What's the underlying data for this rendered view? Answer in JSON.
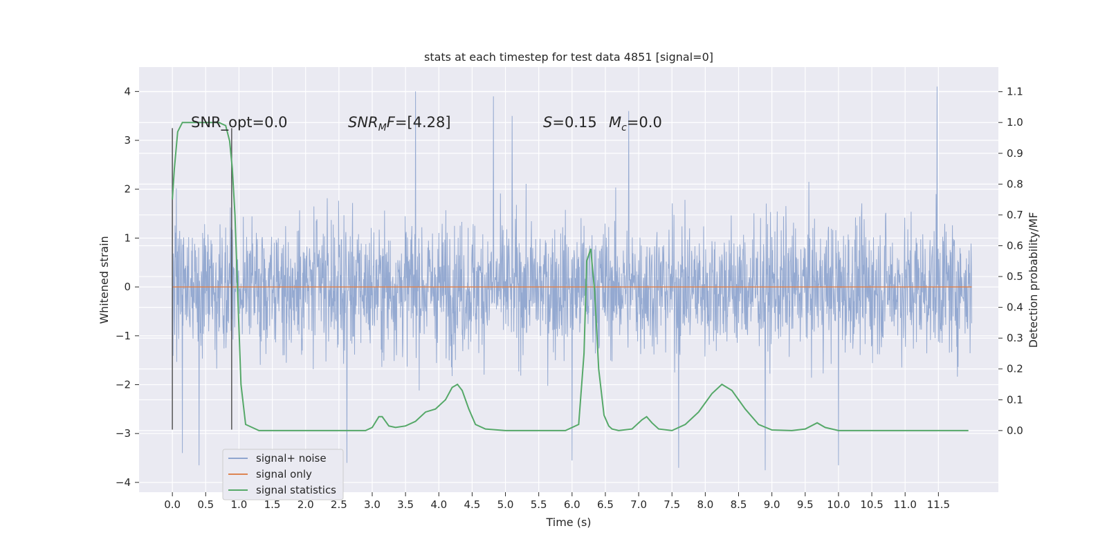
{
  "chart_data": {
    "type": "line",
    "title": "stats at each timestep for test data 4851 [signal=0]",
    "xlabel": "Time (s)",
    "ylabel": "Whitened strain",
    "ylabel_right": "Detection probability/MF",
    "xlim": [
      -0.5,
      12.4
    ],
    "ylim": [
      -4.2,
      4.5
    ],
    "ylim_right": [
      -0.2,
      1.18
    ],
    "x_ticks": [
      0.0,
      0.5,
      1.0,
      1.5,
      2.0,
      2.5,
      3.0,
      3.5,
      4.0,
      4.5,
      5.0,
      5.5,
      6.0,
      6.5,
      7.0,
      7.5,
      8.0,
      8.5,
      9.0,
      9.5,
      10.0,
      10.5,
      11.0,
      11.5
    ],
    "x_tick_labels": [
      "0.0",
      "0.5",
      "1.0",
      "1.5",
      "2.0",
      "2.5",
      "3.0",
      "3.5",
      "4.0",
      "4.5",
      "5.0",
      "5.5",
      "6.0",
      "6.5",
      "7.0",
      "7.5",
      "8.0",
      "8.5",
      "9.0",
      "9.5",
      "10.0",
      "10.5",
      "11.0",
      "11.5"
    ],
    "y_ticks": [
      -4,
      -3,
      -2,
      -1,
      0,
      1,
      2,
      3,
      4
    ],
    "y_tick_labels": [
      "−4",
      "−3",
      "−2",
      "−1",
      "0",
      "1",
      "2",
      "3",
      "4"
    ],
    "y_ticks_right": [
      0.0,
      0.1,
      0.2,
      0.3,
      0.4,
      0.5,
      0.6,
      0.7,
      0.8,
      0.9,
      1.0,
      1.1
    ],
    "y_tick_labels_right": [
      "0.0",
      "0.1",
      "0.2",
      "0.3",
      "0.4",
      "0.5",
      "0.6",
      "0.7",
      "0.8",
      "0.9",
      "1.0",
      "1.1"
    ],
    "grid": true,
    "legend_position": "lower-left",
    "series": [
      {
        "name": "signal+ noise",
        "color": "#8fa5cf",
        "axis": "left",
        "x_range": [
          0.0,
          12.0
        ],
        "core_amplitude": 1.45,
        "typical_max": 2.6,
        "extreme_peaks": [
          {
            "x": 3.65,
            "y": 4.0
          },
          {
            "x": 4.82,
            "y": 3.9
          },
          {
            "x": 11.48,
            "y": 4.1
          },
          {
            "x": 6.85,
            "y": 3.6
          },
          {
            "x": 5.1,
            "y": 3.5
          },
          {
            "x": 0.15,
            "y": -3.4
          },
          {
            "x": 0.4,
            "y": -3.65
          },
          {
            "x": 2.62,
            "y": -3.6
          },
          {
            "x": 6.0,
            "y": -3.55
          },
          {
            "x": 7.6,
            "y": -3.7
          },
          {
            "x": 8.9,
            "y": -3.75
          },
          {
            "x": 10.0,
            "y": -3.65
          }
        ]
      },
      {
        "name": "signal only",
        "color": "#dd8452",
        "axis": "left",
        "x": [
          0.0,
          12.0
        ],
        "y": [
          0.0,
          0.0
        ]
      },
      {
        "name": "signal statistics",
        "color": "#55a868",
        "axis": "right",
        "x": [
          0.0,
          0.03,
          0.08,
          0.15,
          0.3,
          0.5,
          0.7,
          0.8,
          0.86,
          0.9,
          0.94,
          0.98,
          1.03,
          1.1,
          1.3,
          2.0,
          2.9,
          3.0,
          3.1,
          3.15,
          3.25,
          3.35,
          3.5,
          3.65,
          3.8,
          3.95,
          4.1,
          4.2,
          4.28,
          4.35,
          4.45,
          4.55,
          4.7,
          5.0,
          5.5,
          5.9,
          6.1,
          6.18,
          6.22,
          6.28,
          6.34,
          6.4,
          6.48,
          6.55,
          6.6,
          6.7,
          6.9,
          7.05,
          7.12,
          7.2,
          7.3,
          7.5,
          7.7,
          7.9,
          8.1,
          8.25,
          8.4,
          8.6,
          8.8,
          9.0,
          9.3,
          9.5,
          9.68,
          9.8,
          10.0,
          10.5,
          11.0,
          11.5,
          11.95
        ],
        "y": [
          0.75,
          0.85,
          0.97,
          1.0,
          1.0,
          1.0,
          1.0,
          0.99,
          0.94,
          0.85,
          0.7,
          0.45,
          0.15,
          0.02,
          0.0,
          0.0,
          0.0,
          0.01,
          0.045,
          0.045,
          0.015,
          0.01,
          0.015,
          0.03,
          0.06,
          0.07,
          0.1,
          0.14,
          0.15,
          0.13,
          0.07,
          0.02,
          0.005,
          0.0,
          0.0,
          0.0,
          0.02,
          0.25,
          0.55,
          0.59,
          0.45,
          0.2,
          0.05,
          0.015,
          0.005,
          0.0,
          0.005,
          0.035,
          0.045,
          0.025,
          0.005,
          0.0,
          0.02,
          0.06,
          0.12,
          0.15,
          0.13,
          0.07,
          0.02,
          0.002,
          0.0,
          0.005,
          0.025,
          0.01,
          0.0,
          0.0,
          0.0,
          0.0,
          0.0
        ]
      }
    ],
    "marker_lines": [
      {
        "x": 0.0,
        "y_range": [
          -2.92,
          3.25
        ]
      },
      {
        "x": 0.89,
        "y_range": [
          -2.92,
          3.25
        ]
      }
    ],
    "annotations": [
      {
        "key": "snr_opt",
        "text": "SNR_opt=0.0",
        "x": 0.2,
        "y": 3.3
      },
      {
        "key": "snr_mf",
        "x": 2.6,
        "y": 3.3
      },
      {
        "key": "s_mc",
        "x": 5.6,
        "y": 3.3
      }
    ]
  },
  "annotation_texts": {
    "snr_opt": "SNR_opt=0.0",
    "snr_mf_main": "SNR",
    "snr_mf_sub": "M",
    "snr_mf_tail": "F",
    "snr_mf_value": "=[4.28]",
    "s_symbol": "S",
    "s_value": "=0.15",
    "mc_symbol": "M",
    "mc_sub": "c",
    "mc_value": "=0.0"
  },
  "legend": {
    "items": [
      "signal+ noise",
      "signal only",
      "signal statistics"
    ]
  }
}
